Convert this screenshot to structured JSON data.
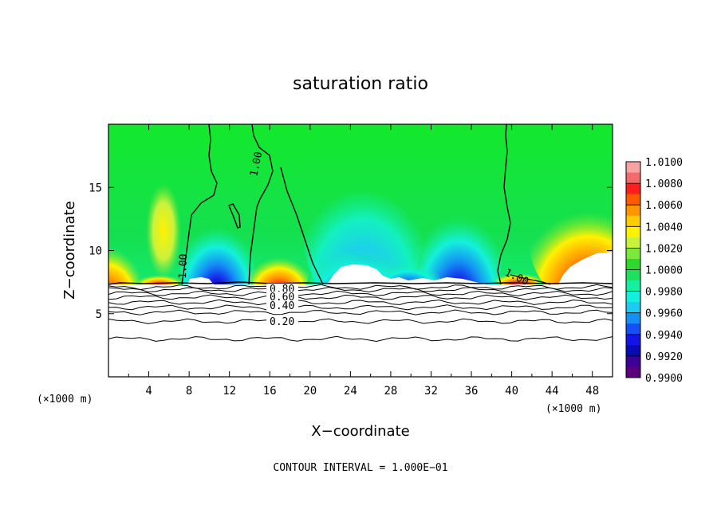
{
  "chart_data": {
    "type": "heatmap",
    "title": "saturation ratio",
    "xlabel": "X−coordinate",
    "ylabel": "Z−coordinate",
    "x_unit": "(×1000 m)",
    "xlim": [
      0,
      50
    ],
    "ylim": [
      0,
      20
    ],
    "xticks": [
      4,
      8,
      12,
      16,
      20,
      24,
      28,
      32,
      36,
      40,
      44,
      48
    ],
    "yticks": [
      5,
      10,
      15
    ],
    "colorbar": {
      "range": [
        0.99,
        1.01
      ],
      "labels": [
        "1.0100",
        "1.0080",
        "1.0060",
        "1.0040",
        "1.0020",
        "1.0000",
        "0.9980",
        "0.9960",
        "0.9940",
        "0.9920",
        "0.9900"
      ],
      "colors": [
        "#f7a3a3",
        "#f26b6b",
        "#ff1e1e",
        "#ff5a00",
        "#ff9600",
        "#ffcd00",
        "#fff200",
        "#c9f23c",
        "#7de83c",
        "#2ed82e",
        "#1fe05a",
        "#14f0a0",
        "#14f0dc",
        "#1ecbf0",
        "#1490f5",
        "#1450f5",
        "#1414e6",
        "#0a0ab4",
        "#3c0096",
        "#5a007d"
      ]
    },
    "lower_contours": {
      "labels": [
        "0.20",
        "0.40",
        "0.60",
        "0.80"
      ],
      "levels": [
        0.1,
        0.2,
        0.3,
        0.4,
        0.5,
        0.6,
        0.7,
        0.8,
        0.9
      ],
      "heights": [
        3.0,
        4.4,
        5.1,
        5.5,
        5.9,
        6.3,
        6.6,
        6.9,
        7.1
      ]
    },
    "one_contour_labels": [
      "1.00",
      "1.00",
      "1.00"
    ],
    "footer": "CONTOUR INTERVAL = 1.000E−01"
  }
}
